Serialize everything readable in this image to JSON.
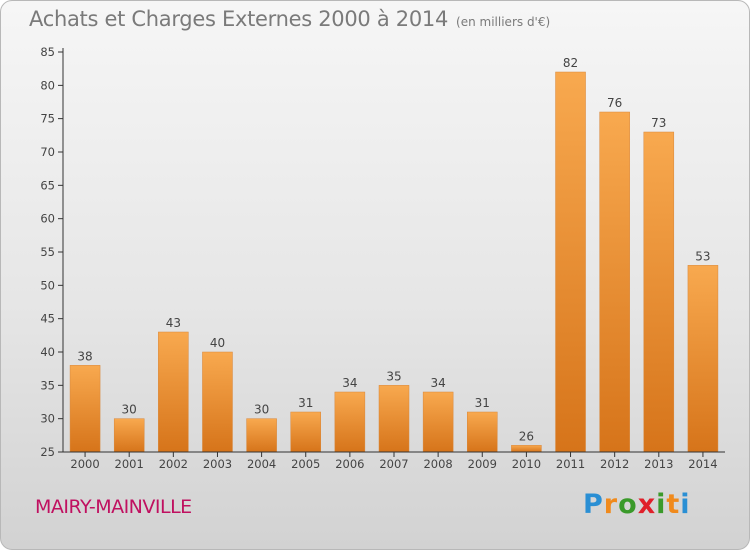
{
  "header": {
    "title": "Achats et Charges Externes 2000 à 2014",
    "subtitle": "(en milliers d'€)"
  },
  "footer": {
    "commune": "MAIRY-MAINVILLE",
    "logo": "Proxiti"
  },
  "colors": {
    "bar_light": "#f7a54c",
    "bar_dark": "#d9781a",
    "axis": "#333333",
    "grid": "#cccccc",
    "commune_text": "#c01060"
  },
  "chart_data": {
    "type": "bar",
    "title": "Achats et Charges Externes 2000 à 2014",
    "subtitle": "(en milliers d'€)",
    "xlabel": "",
    "ylabel": "",
    "categories": [
      "2000",
      "2001",
      "2002",
      "2003",
      "2004",
      "2005",
      "2006",
      "2007",
      "2008",
      "2009",
      "2010",
      "2011",
      "2012",
      "2013",
      "2014"
    ],
    "values": [
      38,
      30,
      43,
      40,
      30,
      31,
      34,
      35,
      34,
      31,
      26,
      82,
      76,
      73,
      53
    ],
    "ylim": [
      25,
      85
    ],
    "yticks": [
      25,
      30,
      35,
      40,
      45,
      50,
      55,
      60,
      65,
      70,
      75,
      80,
      85
    ],
    "grid": true,
    "legend": "none"
  }
}
